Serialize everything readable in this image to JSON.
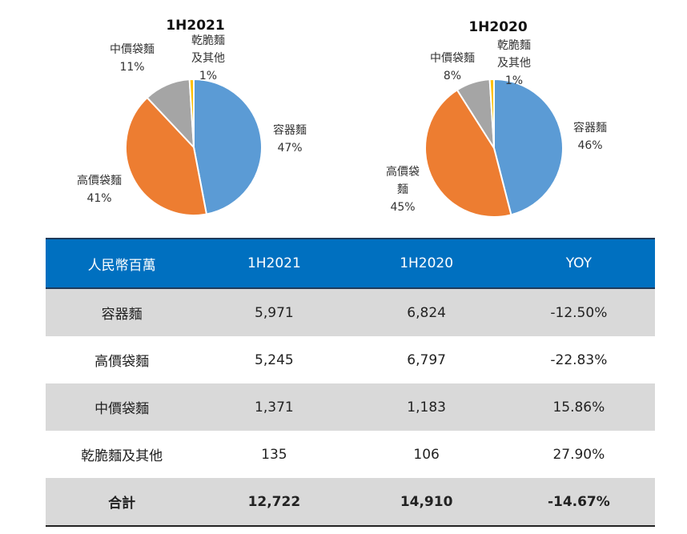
{
  "chart_data": [
    {
      "type": "pie",
      "title": "1H2021",
      "categories": [
        "容器麵",
        "高價袋麵",
        "中價袋麵",
        "乾脆麵及其他"
      ],
      "values": [
        47,
        41,
        11,
        1
      ],
      "value_labels": [
        "47%",
        "41%",
        "11%",
        "1%"
      ],
      "colors": [
        "#5b9bd5",
        "#ed7d31",
        "#a5a5a5",
        "#ffc000"
      ]
    },
    {
      "type": "pie",
      "title": "1H2020",
      "categories": [
        "容器麵",
        "高價袋麵",
        "中價袋麵",
        "乾脆麵及其他"
      ],
      "values": [
        46,
        45,
        8,
        1
      ],
      "value_labels": [
        "46%",
        "45%",
        "8%",
        "1%"
      ],
      "colors": [
        "#5b9bd5",
        "#ed7d31",
        "#a5a5a5",
        "#ffc000"
      ]
    }
  ],
  "table": {
    "header": [
      "人民幣百萬",
      "1H2021",
      "1H2020",
      "YOY"
    ],
    "rows": [
      [
        "容器麵",
        "5,971",
        "6,824",
        "-12.50%"
      ],
      [
        "高價袋麵",
        "5,245",
        "6,797",
        "-22.83%"
      ],
      [
        "中價袋麵",
        "1,371",
        "1,183",
        "15.86%"
      ],
      [
        "乾脆麵及其他",
        "135",
        "106",
        "27.90%"
      ],
      [
        "合計",
        "12,722",
        "14,910",
        "-14.67%"
      ]
    ]
  }
}
